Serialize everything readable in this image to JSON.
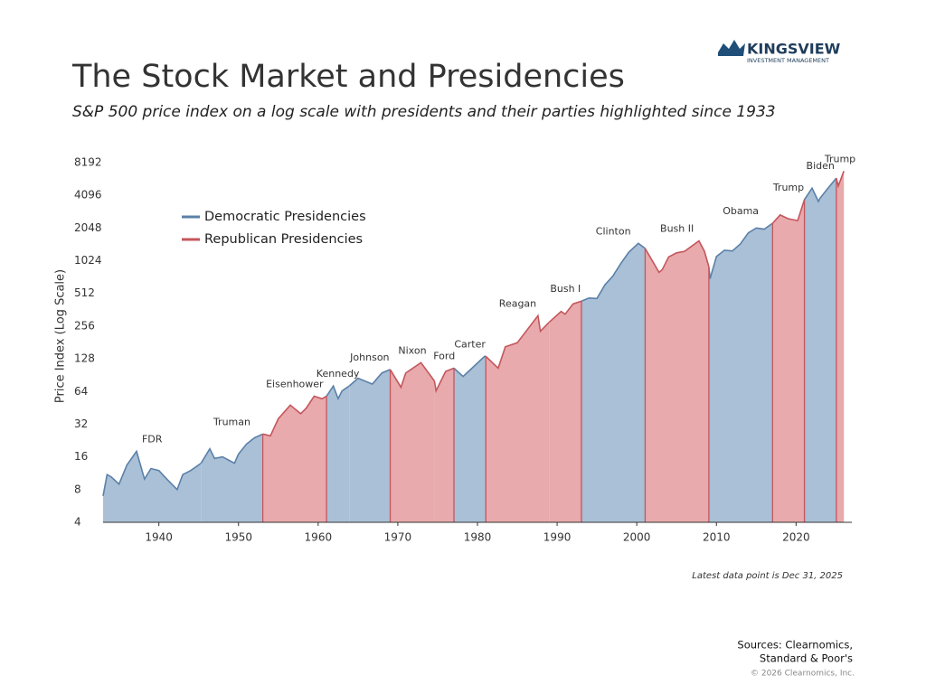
{
  "chart_data": {
    "type": "area",
    "title": "The Stock Market and Presidencies",
    "subtitle": "S&P 500 price index on a log scale with presidents and their parties highlighted since 1933",
    "y_label": "Price Index (Log Scale)",
    "note": "Latest data point is Dec 31, 2025",
    "log_scale": true,
    "legend": "upper left",
    "xlim": [
      1933,
      2027
    ],
    "xticks": [
      1940,
      1950,
      1960,
      1970,
      1980,
      1990,
      2000,
      2010,
      2020
    ],
    "ylim": [
      4,
      8192
    ],
    "yticks": [
      4,
      8,
      16,
      32,
      64,
      128,
      256,
      512,
      1024,
      2048,
      4096,
      8192
    ],
    "x": [
      1933.0,
      1933.5,
      1934,
      1935,
      1936,
      1937.2,
      1938.2,
      1939,
      1940,
      1941,
      1942.3,
      1943,
      1944,
      1945.3,
      1946.4,
      1947,
      1948,
      1949.5,
      1950,
      1951,
      1952,
      1953.05,
      1954,
      1955,
      1956.5,
      1957.8,
      1958.5,
      1959.5,
      1960.5,
      1961.05,
      1961.9,
      1962.5,
      1963,
      1963.9,
      1965,
      1966.8,
      1968,
      1969.05,
      1970.4,
      1971,
      1972.9,
      1974.6,
      1974.8,
      1976,
      1977.05,
      1978.2,
      1979,
      1980.9,
      1981.05,
      1982.6,
      1983.5,
      1985,
      1987.6,
      1987.9,
      1989.05,
      1990.5,
      1991,
      1992,
      1993.05,
      1994,
      1995,
      1996,
      1997,
      1998,
      1999,
      2000.2,
      2001.05,
      2002.8,
      2003.2,
      2004,
      2005,
      2006,
      2007.8,
      2008.5,
      2009.05,
      2009.2,
      2010,
      2011,
      2012,
      2013,
      2014,
      2015,
      2016,
      2017.05,
      2018,
      2019,
      2020.2,
      2021.05,
      2022,
      2022.8,
      2023,
      2024,
      2025.05,
      2025.3,
      2026
    ],
    "values": [
      7,
      11,
      10.5,
      9,
      13.5,
      18,
      10,
      12.5,
      12,
      10,
      8,
      11,
      12,
      14,
      19,
      15.5,
      16,
      14,
      17,
      21,
      24,
      26,
      25,
      36,
      48,
      40,
      45,
      58,
      55,
      58,
      72,
      55,
      65,
      72,
      85,
      75,
      95,
      102,
      70,
      95,
      118,
      80,
      65,
      98,
      105,
      88,
      100,
      135,
      135,
      105,
      165,
      180,
      320,
      230,
      280,
      350,
      330,
      410,
      435,
      465,
      460,
      615,
      740,
      970,
      1230,
      1480,
      1330,
      800,
      850,
      1110,
      1210,
      1250,
      1560,
      1250,
      900,
      700,
      1120,
      1280,
      1260,
      1460,
      1850,
      2050,
      2000,
      2270,
      2700,
      2500,
      2400,
      3750,
      4770,
      3600,
      3850,
      4770,
      5900,
      5000,
      6850
    ],
    "parties": [
      {
        "name": "Democratic Presidencies",
        "color": "#a9c0d6",
        "line_color": "#5b80a8"
      },
      {
        "name": "Republican Presidencies",
        "color": "#e8aaac",
        "line_color": "#c4565c"
      }
    ],
    "presidencies": [
      {
        "name": "FDR",
        "party": 0,
        "start": 1933.0,
        "end": 1945.3
      },
      {
        "name": "Truman",
        "party": 0,
        "start": 1945.3,
        "end": 1953.05
      },
      {
        "name": "Eisenhower",
        "party": 1,
        "start": 1953.05,
        "end": 1961.05
      },
      {
        "name": "Kennedy",
        "party": 0,
        "start": 1961.05,
        "end": 1963.9
      },
      {
        "name": "Johnson",
        "party": 0,
        "start": 1963.9,
        "end": 1969.05
      },
      {
        "name": "Nixon",
        "party": 1,
        "start": 1969.05,
        "end": 1974.6
      },
      {
        "name": "Ford",
        "party": 1,
        "start": 1974.6,
        "end": 1977.05
      },
      {
        "name": "Carter",
        "party": 0,
        "start": 1977.05,
        "end": 1981.05
      },
      {
        "name": "Reagan",
        "party": 1,
        "start": 1981.05,
        "end": 1989.05
      },
      {
        "name": "Bush I",
        "party": 1,
        "start": 1989.05,
        "end": 1993.05
      },
      {
        "name": "Clinton",
        "party": 0,
        "start": 1993.05,
        "end": 2001.05
      },
      {
        "name": "Bush II",
        "party": 1,
        "start": 2001.05,
        "end": 2009.05
      },
      {
        "name": "Obama",
        "party": 0,
        "start": 2009.05,
        "end": 2017.05
      },
      {
        "name": "Trump",
        "party": 1,
        "start": 2017.05,
        "end": 2021.05
      },
      {
        "name": "Biden",
        "party": 0,
        "start": 2021.05,
        "end": 2025.05
      },
      {
        "name": "Trump",
        "party": 1,
        "start": 2025.05,
        "end": 2026
      }
    ]
  },
  "logo": {
    "name": "KINGSVIEW",
    "tagline": "INVESTMENT MANAGEMENT"
  },
  "footer": {
    "sources": [
      "Sources: Clearnomics,",
      "Standard & Poor's"
    ],
    "copyright": "© 2026 Clearnomics, Inc."
  }
}
